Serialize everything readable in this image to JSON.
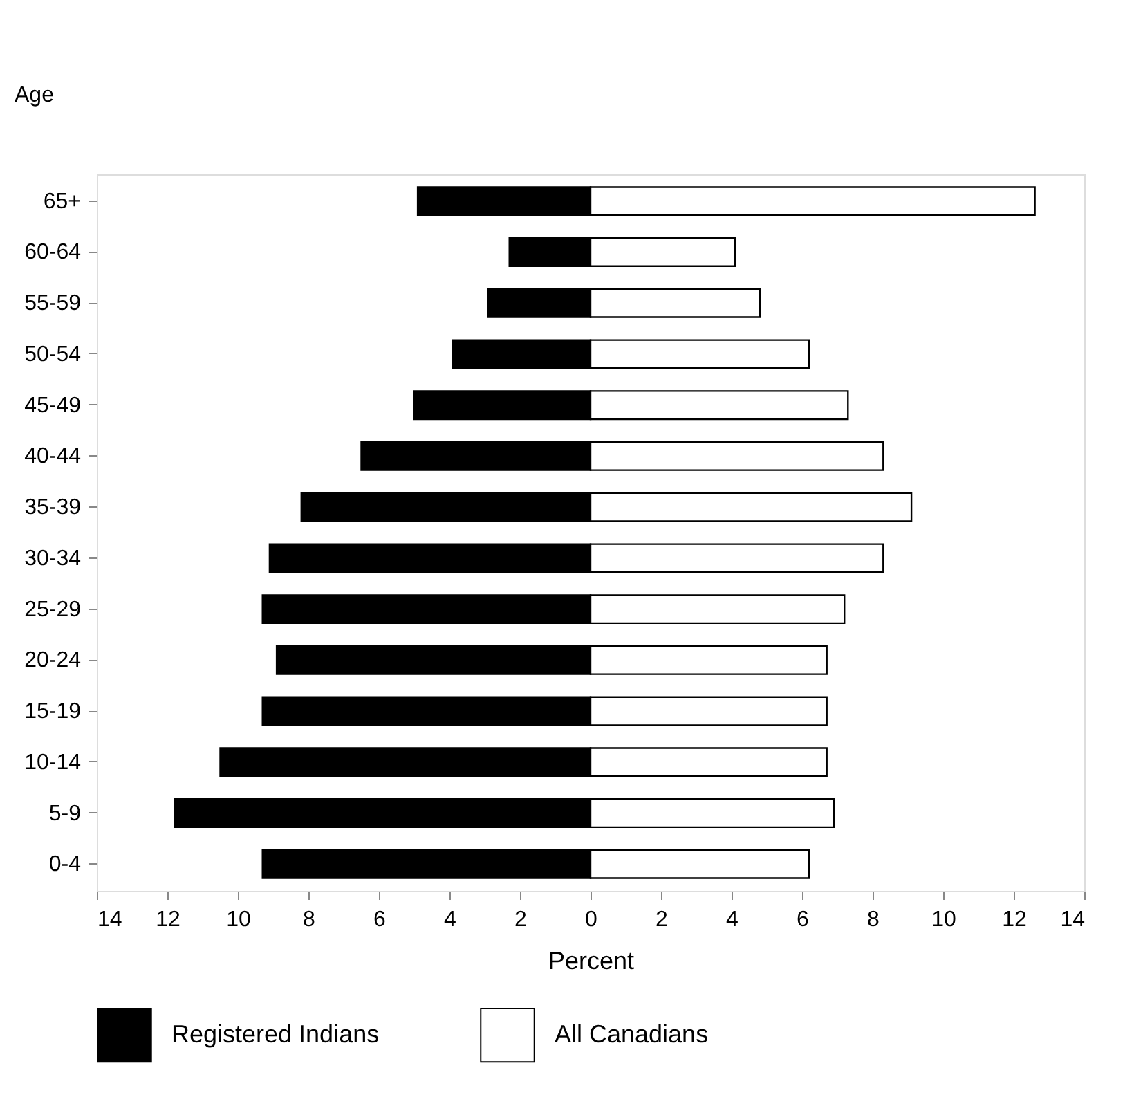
{
  "chart_data": {
    "type": "bar",
    "orientation": "horizontal",
    "stacked": true,
    "ylabel": "Age",
    "xlabel": "Percent",
    "categories": [
      "65+",
      "60-64",
      "55-59",
      "50-54",
      "45-49",
      "40-44",
      "35-39",
      "30-34",
      "25-29",
      "20-24",
      "15-19",
      "10-14",
      "5-9",
      "0-4"
    ],
    "series": [
      {
        "name": "Registered Indians",
        "color": "#000000",
        "values": [
          -4.9,
          -2.3,
          -2.9,
          -3.9,
          -5.0,
          -6.5,
          -8.2,
          -9.1,
          -9.3,
          -8.9,
          -9.3,
          -10.5,
          -11.8,
          -9.3
        ]
      },
      {
        "name": "All Canadians",
        "color": "#ffffff",
        "values": [
          12.6,
          4.1,
          4.8,
          6.2,
          7.3,
          8.3,
          9.1,
          8.3,
          7.2,
          6.7,
          6.7,
          6.7,
          6.9,
          6.2
        ]
      }
    ],
    "xlim": [
      -14,
      14
    ],
    "xticks": [
      {
        "value": -14,
        "label": "14"
      },
      {
        "value": -12,
        "label": "12"
      },
      {
        "value": -10,
        "label": "10"
      },
      {
        "value": -8,
        "label": "8"
      },
      {
        "value": -6,
        "label": "6"
      },
      {
        "value": -4,
        "label": "4"
      },
      {
        "value": -2,
        "label": "2"
      },
      0,
      2,
      4,
      6,
      8,
      10,
      12,
      14
    ],
    "grid": false,
    "legend": "bottom"
  }
}
